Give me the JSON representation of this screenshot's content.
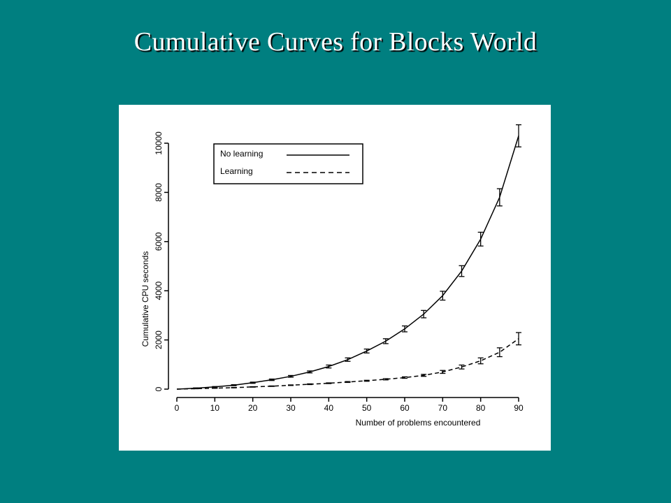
{
  "slide": {
    "title": "Cumulative Curves for Blocks World"
  },
  "chart_data": {
    "type": "line",
    "title": "",
    "xlabel": "Number of problems encountered",
    "ylabel": "Cumulative CPU seconds",
    "xlim": [
      0,
      90
    ],
    "ylim": [
      0,
      10000
    ],
    "xticks": [
      0,
      10,
      20,
      30,
      40,
      50,
      60,
      70,
      80,
      90
    ],
    "yticks": [
      0,
      2000,
      4000,
      6000,
      8000,
      10000
    ],
    "grid": false,
    "legend_position": "top-left",
    "x": [
      0,
      5,
      10,
      15,
      20,
      25,
      30,
      35,
      40,
      45,
      50,
      55,
      60,
      65,
      70,
      75,
      80,
      85,
      90
    ],
    "series": [
      {
        "name": "No learning",
        "style": "solid",
        "values": [
          0,
          40,
          90,
          160,
          260,
          380,
          520,
          700,
          920,
          1200,
          1550,
          1950,
          2450,
          3050,
          3800,
          4800,
          6100,
          7800,
          10300
        ],
        "error": [
          0,
          10,
          15,
          20,
          25,
          30,
          35,
          40,
          60,
          70,
          80,
          100,
          120,
          150,
          180,
          220,
          280,
          350,
          450
        ]
      },
      {
        "name": "Learning",
        "style": "dashed",
        "values": [
          0,
          20,
          40,
          60,
          90,
          120,
          160,
          200,
          240,
          290,
          340,
          400,
          470,
          560,
          700,
          900,
          1150,
          1500,
          2050
        ],
        "error": [
          0,
          5,
          5,
          8,
          10,
          10,
          12,
          15,
          15,
          18,
          20,
          25,
          30,
          40,
          60,
          80,
          120,
          180,
          250
        ]
      }
    ]
  }
}
